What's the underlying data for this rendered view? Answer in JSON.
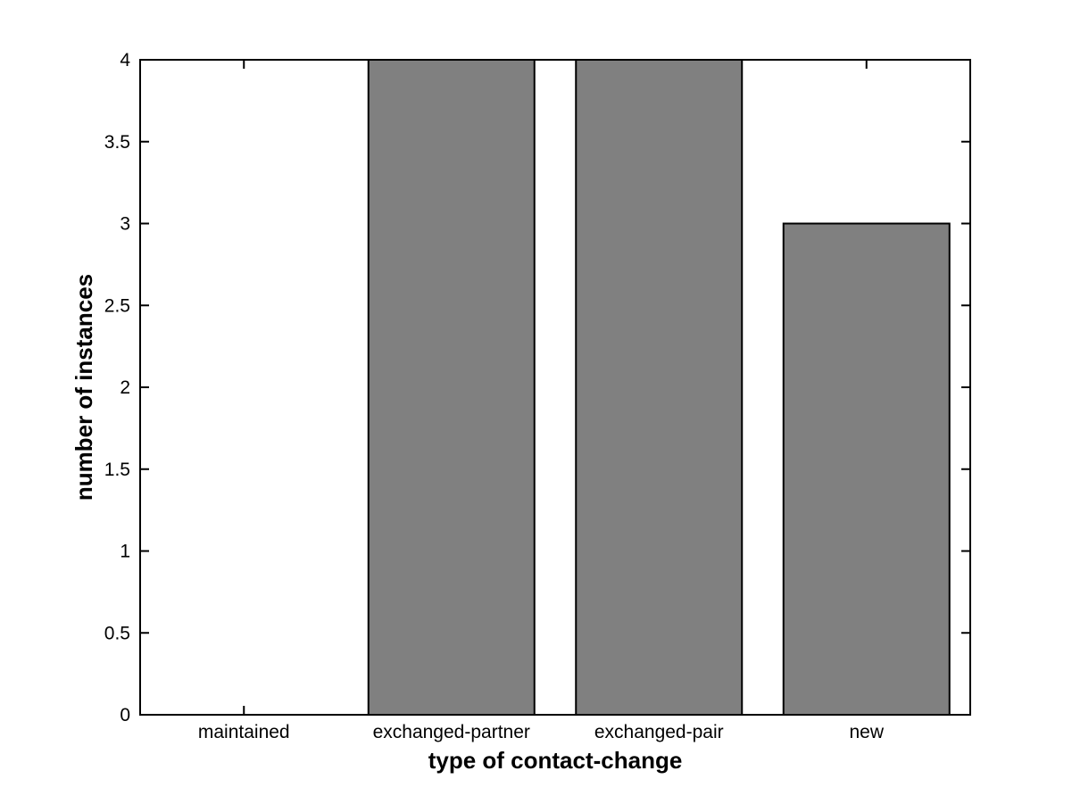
{
  "figure": {
    "background": "#ffffff"
  },
  "chart_data": {
    "type": "bar",
    "title": "",
    "categories": [
      "maintained",
      "exchanged-partner",
      "exchanged-pair",
      "new"
    ],
    "values": [
      0,
      4,
      4,
      3
    ],
    "xlabel": "type of contact-change",
    "ylabel": "number of instances",
    "ylim": [
      0,
      4
    ],
    "ytick_step": 0.5,
    "yticks": [
      0,
      0.5,
      1,
      1.5,
      2,
      2.5,
      3,
      3.5,
      4
    ],
    "ytick_labels": [
      "0",
      "0.5",
      "1",
      "1.5",
      "2",
      "2.5",
      "3",
      "3.5",
      "4"
    ],
    "bar_width_fraction": 0.8,
    "bar_color": "#808080",
    "bar_edge_color": "#000000",
    "axis_color": "#000000",
    "grid": "off",
    "legend": "none",
    "tick_direction": "in",
    "box": "on"
  }
}
